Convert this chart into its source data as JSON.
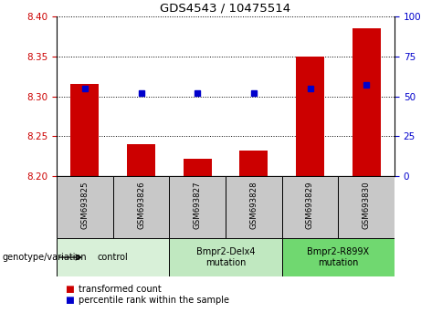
{
  "title": "GDS4543 / 10475514",
  "samples": [
    "GSM693825",
    "GSM693826",
    "GSM693827",
    "GSM693828",
    "GSM693829",
    "GSM693830"
  ],
  "transformed_count": [
    8.315,
    8.24,
    8.222,
    8.232,
    8.35,
    8.385
  ],
  "percentile_rank": [
    55,
    52,
    52,
    52,
    55,
    57
  ],
  "ylim_left": [
    8.2,
    8.4
  ],
  "ylim_right": [
    0,
    100
  ],
  "yticks_left": [
    8.2,
    8.25,
    8.3,
    8.35,
    8.4
  ],
  "yticks_right": [
    0,
    25,
    50,
    75,
    100
  ],
  "groups": [
    {
      "label": "control",
      "indices": [
        0,
        1
      ],
      "color": "#d8f0d8"
    },
    {
      "label": "Bmpr2-Delx4\nmutation",
      "indices": [
        2,
        3
      ],
      "color": "#c0e8c0"
    },
    {
      "label": "Bmpr2-R899X\nmutation",
      "indices": [
        4,
        5
      ],
      "color": "#70d870"
    }
  ],
  "bar_color": "#cc0000",
  "dot_color": "#0000cc",
  "bar_width": 0.5,
  "grid_color": "#000000",
  "tick_label_color_left": "#cc0000",
  "tick_label_color_right": "#0000cc",
  "legend_red_label": "transformed count",
  "legend_blue_label": "percentile rank within the sample",
  "genotype_label": "genotype/variation",
  "xlabel_area_color": "#c8c8c8",
  "title_fontsize": 10
}
